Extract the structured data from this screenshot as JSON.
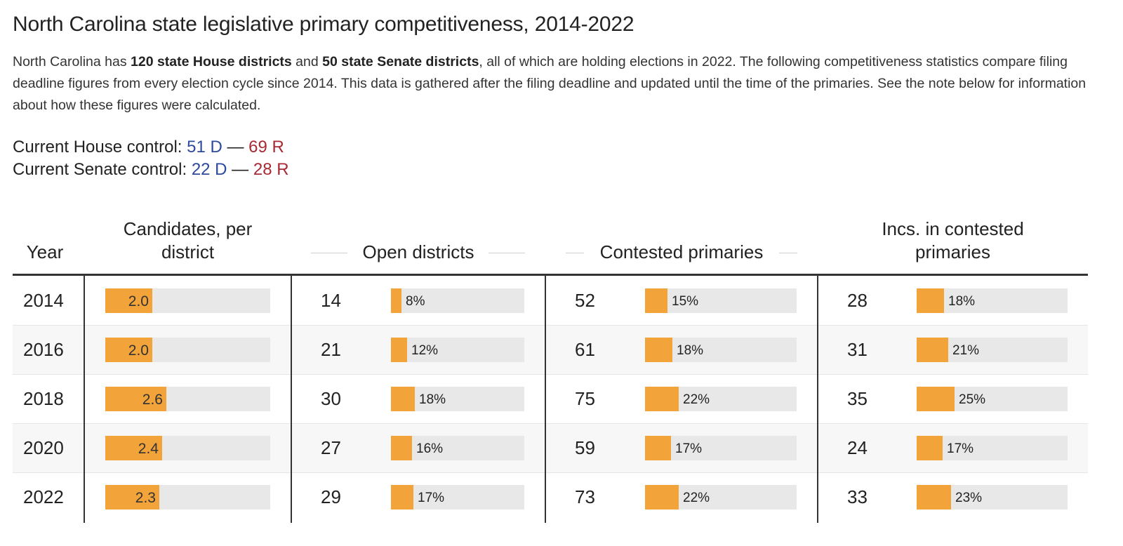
{
  "title": "North Carolina state legislative primary competitiveness, 2014-2022",
  "intro": {
    "p1": "North Carolina has ",
    "b1": "120 state House districts",
    "p2": " and ",
    "b2": "50 state Senate districts",
    "p3": ", all of which are holding elections in 2022. The following competitiveness statistics compare filing deadline figures from every election cycle since 2014. This data is gathered after the filing deadline and updated until the time of the primaries. See the note below for information about how these figures were calculated."
  },
  "control": {
    "house_label": "Current House control: ",
    "house_d": "51 D",
    "house_sep": " — ",
    "house_r": "69 R",
    "senate_label": "Current Senate control: ",
    "senate_d": "22 D",
    "senate_sep": " — ",
    "senate_r": "28 R"
  },
  "headers": {
    "year": "Year",
    "candidates_line1": "Candidates, per",
    "candidates_line2": "district",
    "open": "Open districts",
    "contested": "Contested primaries",
    "incs_line1": "Incs. in contested",
    "incs_line2": "primaries"
  },
  "colors": {
    "bar": "#f2a33a",
    "track": "#e8e8e8",
    "democrat": "#2c4a9e",
    "republican": "#a82a35"
  },
  "chart_data": {
    "type": "table",
    "columns": [
      "Year",
      "Candidates, per district",
      "Open districts",
      "Contested primaries",
      "Incs. in contested primaries"
    ],
    "candidates_max": 7,
    "rows": [
      {
        "year": "2014",
        "candidates": 2.0,
        "candidates_label": "2.0",
        "open": "14",
        "open_pct": 8,
        "open_pct_label": "8%",
        "contested": "52",
        "contested_pct": 15,
        "contested_pct_label": "15%",
        "incs": "28",
        "incs_pct": 18,
        "incs_pct_label": "18%"
      },
      {
        "year": "2016",
        "candidates": 2.0,
        "candidates_label": "2.0",
        "open": "21",
        "open_pct": 12,
        "open_pct_label": "12%",
        "contested": "61",
        "contested_pct": 18,
        "contested_pct_label": "18%",
        "incs": "31",
        "incs_pct": 21,
        "incs_pct_label": "21%"
      },
      {
        "year": "2018",
        "candidates": 2.6,
        "candidates_label": "2.6",
        "open": "30",
        "open_pct": 18,
        "open_pct_label": "18%",
        "contested": "75",
        "contested_pct": 22,
        "contested_pct_label": "22%",
        "incs": "35",
        "incs_pct": 25,
        "incs_pct_label": "25%"
      },
      {
        "year": "2020",
        "candidates": 2.4,
        "candidates_label": "2.4",
        "open": "27",
        "open_pct": 16,
        "open_pct_label": "16%",
        "contested": "59",
        "contested_pct": 17,
        "contested_pct_label": "17%",
        "incs": "24",
        "incs_pct": 17,
        "incs_pct_label": "17%"
      },
      {
        "year": "2022",
        "candidates": 2.3,
        "candidates_label": "2.3",
        "open": "29",
        "open_pct": 17,
        "open_pct_label": "17%",
        "contested": "73",
        "contested_pct": 22,
        "contested_pct_label": "22%",
        "incs": "33",
        "incs_pct": 23,
        "incs_pct_label": "23%"
      }
    ]
  }
}
